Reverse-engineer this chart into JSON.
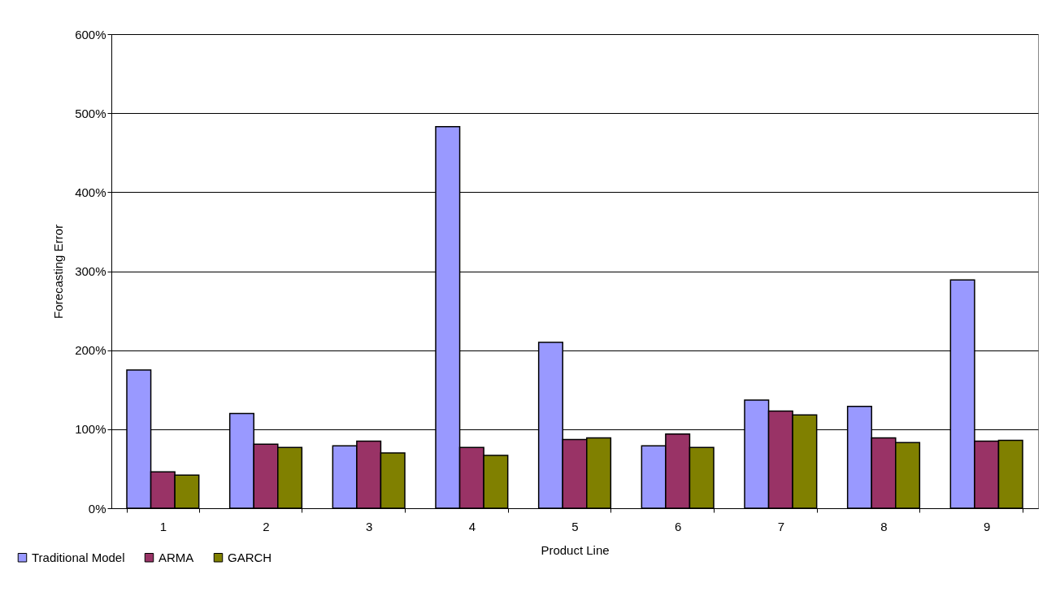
{
  "chart_data": {
    "type": "bar",
    "xlabel": "Product Line",
    "ylabel": "Forecasting Error",
    "categories": [
      "1",
      "2",
      "3",
      "4",
      "5",
      "6",
      "7",
      "8",
      "9"
    ],
    "series": [
      {
        "name": "Traditional Model",
        "color": "#9999ff",
        "values": [
          175,
          120,
          79,
          483,
          210,
          79,
          137,
          129,
          289
        ]
      },
      {
        "name": "ARMA",
        "color": "#993366",
        "values": [
          46,
          81,
          85,
          77,
          87,
          94,
          123,
          89,
          85
        ]
      },
      {
        "name": "GARCH",
        "color": "#808000",
        "values": [
          42,
          77,
          70,
          67,
          89,
          77,
          118,
          83,
          86
        ]
      }
    ],
    "ylim": [
      0,
      600
    ],
    "yticks": [
      {
        "value": 0,
        "label": "0%"
      },
      {
        "value": 100,
        "label": "100%"
      },
      {
        "value": 200,
        "label": "200%"
      },
      {
        "value": 300,
        "label": "300%"
      },
      {
        "value": 400,
        "label": "400%"
      },
      {
        "value": 500,
        "label": "500%"
      },
      {
        "value": 600,
        "label": "600%"
      }
    ],
    "grid": "y",
    "legend": "bottom left"
  }
}
